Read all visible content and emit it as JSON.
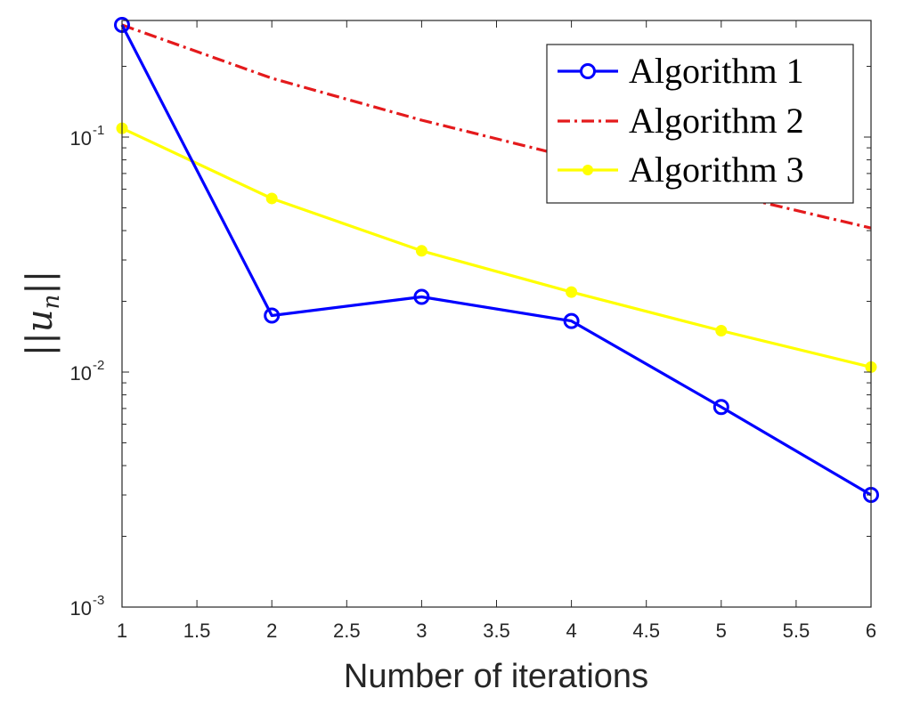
{
  "chart_data": {
    "type": "line",
    "xlabel": "Number of iterations",
    "ylabel": "||u_n||",
    "x_scale": "linear",
    "y_scale": "log",
    "xlim": [
      1,
      6
    ],
    "ylim": [
      0.001,
      0.3
    ],
    "x_ticks": [
      "1",
      "1.5",
      "2",
      "2.5",
      "3",
      "3.5",
      "4",
      "4.5",
      "5",
      "5.5",
      "6"
    ],
    "y_ticks": [
      {
        "base": "10",
        "exp": "-3",
        "value": 0.001
      },
      {
        "base": "10",
        "exp": "-2",
        "value": 0.01
      },
      {
        "base": "10",
        "exp": "-1",
        "value": 0.1
      }
    ],
    "grid": false,
    "legend_position": "top-right",
    "series": [
      {
        "name": "Algorithm 1",
        "color": "#0000ff",
        "style": "solid",
        "marker": "circle-open",
        "x": [
          1,
          2,
          3,
          4,
          5,
          6
        ],
        "values": [
          0.3,
          0.0174,
          0.0209,
          0.0165,
          0.0071,
          0.003
        ]
      },
      {
        "name": "Algorithm 2",
        "color": "#e41a1c",
        "style": "dash-dot",
        "marker": "none",
        "x": [
          1,
          2,
          3,
          4,
          5,
          6
        ],
        "values": [
          0.3,
          0.178,
          0.118,
          0.082,
          0.058,
          0.041
        ]
      },
      {
        "name": "Algorithm 3",
        "color": "#ffff00",
        "style": "solid",
        "marker": "dot",
        "x": [
          1,
          2,
          3,
          4,
          5,
          6
        ],
        "values": [
          0.109,
          0.0548,
          0.0328,
          0.0219,
          0.015,
          0.0105
        ]
      }
    ]
  }
}
